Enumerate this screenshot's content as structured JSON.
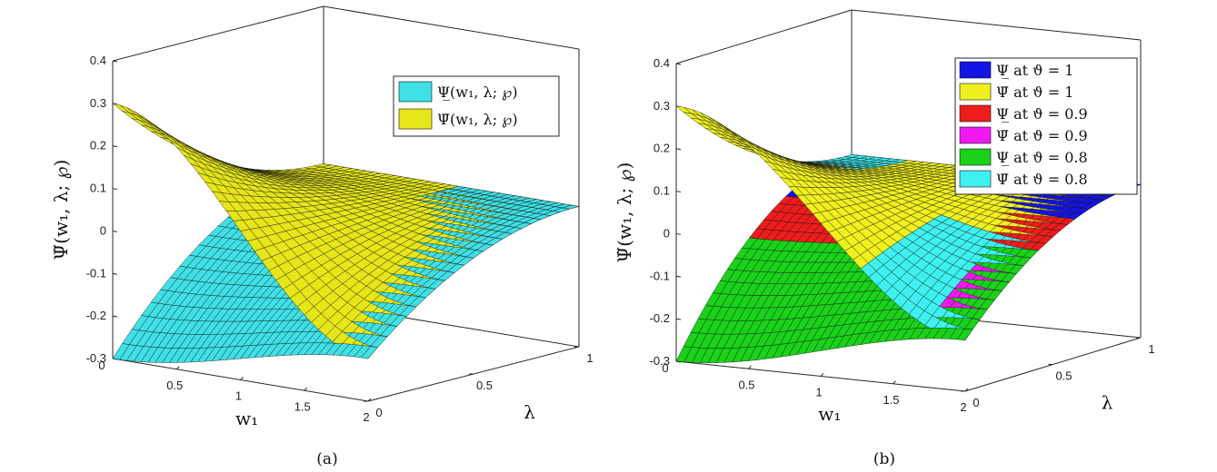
{
  "chart_data": [
    {
      "panel": "(a)",
      "type": "surface",
      "caption": "(a)",
      "xlabel": "w₁",
      "ylabel": "λ",
      "zlabel": "Ψ̃(w₁, λ; ℘)",
      "xlim": [
        0,
        2
      ],
      "ylim": [
        0,
        1
      ],
      "zlim": [
        -0.3,
        0.4
      ],
      "xticks": [
        "0",
        "0.5",
        "1",
        "1.5",
        "2"
      ],
      "yticks": [
        "0",
        "0.5",
        "1"
      ],
      "zticks": [
        "-0.3",
        "-0.2",
        "-0.1",
        "0",
        "0.1",
        "0.2",
        "0.3",
        "0.4"
      ],
      "legend_position": "top-right",
      "series": [
        {
          "name": "Ψ̲(w₁, λ; ℘)",
          "color": "#3fe0e6",
          "corners": {
            "x0_y0": -0.3,
            "x2_y0": -0.2,
            "x0_y1": 0.03,
            "x2_y1": 0.03
          }
        },
        {
          "name": "Ψ̄(w₁, λ; ℘)",
          "color": "#e6e619",
          "corners": {
            "x0_y0": 0.3,
            "x2_y0": -0.2,
            "x0_y1": 0.03,
            "x2_y1": 0.03
          }
        }
      ]
    },
    {
      "panel": "(b)",
      "type": "surface",
      "caption": "(b)",
      "xlabel": "w₁",
      "ylabel": "λ",
      "zlabel": "Ψ̃(w₁, λ; ℘)",
      "xlim": [
        0,
        2
      ],
      "ylim": [
        0,
        1
      ],
      "zlim": [
        -0.3,
        0.4
      ],
      "xticks": [
        "0",
        "0.5",
        "1",
        "1.5",
        "2"
      ],
      "yticks": [
        "0",
        "0.5",
        "1"
      ],
      "zticks": [
        "-0.3",
        "-0.2",
        "-0.1",
        "0",
        "0.1",
        "0.2",
        "0.3",
        "0.4"
      ],
      "legend_position": "top-right",
      "series": [
        {
          "name": "Ψ̲ at ϑ = 1",
          "color": "#1414e6"
        },
        {
          "name": "Ψ̄ at ϑ = 1",
          "color": "#f0f01e"
        },
        {
          "name": "Ψ̲ at ϑ = 0.9",
          "color": "#ee1c1c"
        },
        {
          "name": "Ψ̄ at ϑ = 0.9",
          "color": "#f019f0"
        },
        {
          "name": "Ψ̲ at ϑ = 0.8",
          "color": "#19d219"
        },
        {
          "name": "Ψ̄ at ϑ = 0.8",
          "color": "#3ff0f0"
        }
      ]
    }
  ]
}
